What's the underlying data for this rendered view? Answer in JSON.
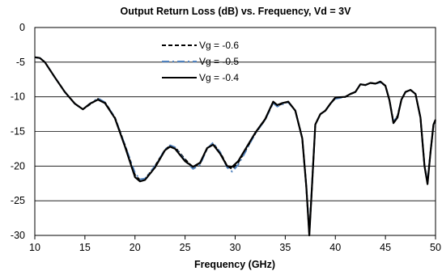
{
  "chart_data": {
    "type": "line",
    "title": "Output Return Loss (dB) vs. Frequency, Vd = 3V",
    "xlabel": "Frequency (GHz)",
    "ylabel": "",
    "xlim": [
      10,
      50
    ],
    "ylim": [
      -30,
      0
    ],
    "x_ticks": [
      10,
      15,
      20,
      25,
      30,
      35,
      40,
      45,
      50
    ],
    "y_ticks": [
      0,
      -5,
      -10,
      -15,
      -20,
      -25,
      -30
    ],
    "grid": "horizontal",
    "legend_position": "top-center",
    "series": [
      {
        "name": "Vg = -0.6",
        "color": "#000000",
        "style": "dashed",
        "points": [
          [
            10,
            -4.3
          ],
          [
            10.5,
            -4.4
          ],
          [
            11,
            -5.0
          ],
          [
            12,
            -7.2
          ],
          [
            13,
            -9.3
          ],
          [
            14,
            -11.0
          ],
          [
            14.8,
            -11.8
          ],
          [
            15.5,
            -11.1
          ],
          [
            16.3,
            -10.3
          ],
          [
            17,
            -10.8
          ],
          [
            18,
            -13.0
          ],
          [
            19,
            -17.0
          ],
          [
            20,
            -21.3
          ],
          [
            20.5,
            -22.0
          ],
          [
            21,
            -21.9
          ],
          [
            22,
            -20.0
          ],
          [
            23,
            -17.6
          ],
          [
            23.5,
            -17.1
          ],
          [
            24,
            -17.3
          ],
          [
            25,
            -19.0
          ],
          [
            25.8,
            -20.2
          ],
          [
            26.5,
            -19.6
          ],
          [
            27.2,
            -17.5
          ],
          [
            27.8,
            -16.8
          ],
          [
            28.5,
            -18.0
          ],
          [
            29.2,
            -20.0
          ],
          [
            29.7,
            -20.4
          ],
          [
            30.3,
            -19.5
          ],
          [
            31,
            -17.8
          ],
          [
            32,
            -15.3
          ],
          [
            33,
            -13.3
          ],
          [
            33.8,
            -10.8
          ],
          [
            34.2,
            -11.3
          ],
          [
            34.7,
            -11.0
          ],
          [
            35.3,
            -10.7
          ],
          [
            36,
            -12.0
          ],
          [
            36.7,
            -16.0
          ],
          [
            37.1,
            -23.0
          ],
          [
            37.4,
            -29.8
          ],
          [
            37.7,
            -22.0
          ],
          [
            38,
            -14.0
          ],
          [
            38.5,
            -12.5
          ],
          [
            39,
            -12.0
          ],
          [
            39.5,
            -11.0
          ],
          [
            40,
            -10.2
          ],
          [
            41,
            -10.0
          ],
          [
            41.5,
            -9.6
          ],
          [
            42,
            -9.3
          ],
          [
            42.5,
            -8.2
          ],
          [
            43,
            -8.3
          ],
          [
            43.5,
            -8.0
          ],
          [
            44,
            -8.1
          ],
          [
            44.5,
            -7.9
          ],
          [
            45,
            -8.4
          ],
          [
            45.4,
            -10.5
          ],
          [
            45.8,
            -13.6
          ],
          [
            46.2,
            -12.8
          ],
          [
            46.6,
            -10.4
          ],
          [
            47,
            -9.3
          ],
          [
            47.5,
            -9.0
          ],
          [
            48,
            -9.6
          ],
          [
            48.5,
            -13.0
          ],
          [
            48.9,
            -20.0
          ],
          [
            49.2,
            -22.3
          ],
          [
            49.5,
            -18.0
          ],
          [
            49.8,
            -14.0
          ],
          [
            50,
            -13.5
          ]
        ]
      },
      {
        "name": "Vg = -0.5",
        "color": "#4f81bd",
        "style": "dashdot",
        "points": [
          [
            10,
            -4.3
          ],
          [
            10.5,
            -4.4
          ],
          [
            11,
            -5.0
          ],
          [
            12,
            -7.2
          ],
          [
            13,
            -9.3
          ],
          [
            14,
            -11.0
          ],
          [
            14.8,
            -11.8
          ],
          [
            15.5,
            -11.0
          ],
          [
            16.3,
            -10.2
          ],
          [
            17,
            -10.8
          ],
          [
            18,
            -13.0
          ],
          [
            19,
            -17.0
          ],
          [
            20,
            -21.0
          ],
          [
            20.5,
            -21.9
          ],
          [
            21,
            -21.8
          ],
          [
            22,
            -20.0
          ],
          [
            23,
            -17.6
          ],
          [
            23.5,
            -17.0
          ],
          [
            24,
            -17.3
          ],
          [
            25,
            -19.2
          ],
          [
            25.8,
            -20.4
          ],
          [
            26.5,
            -19.8
          ],
          [
            27.2,
            -17.5
          ],
          [
            27.8,
            -16.6
          ],
          [
            28.5,
            -18.0
          ],
          [
            29.2,
            -20.2
          ],
          [
            29.7,
            -20.8
          ],
          [
            30.3,
            -19.8
          ],
          [
            31,
            -18.0
          ],
          [
            32,
            -15.3
          ],
          [
            33,
            -13.3
          ],
          [
            33.8,
            -10.9
          ],
          [
            34.2,
            -11.4
          ],
          [
            34.7,
            -11.1
          ],
          [
            35.3,
            -10.8
          ],
          [
            36,
            -12.0
          ],
          [
            36.7,
            -16.0
          ],
          [
            37.1,
            -23.0
          ],
          [
            37.4,
            -29.6
          ],
          [
            37.7,
            -22.0
          ],
          [
            38,
            -14.0
          ],
          [
            38.5,
            -12.5
          ],
          [
            39,
            -12.0
          ],
          [
            39.5,
            -11.0
          ],
          [
            40,
            -10.3
          ],
          [
            41,
            -10.0
          ],
          [
            41.5,
            -9.6
          ],
          [
            42,
            -9.3
          ],
          [
            42.5,
            -8.2
          ],
          [
            43,
            -8.3
          ],
          [
            43.5,
            -8.0
          ],
          [
            44,
            -8.1
          ],
          [
            44.5,
            -7.9
          ],
          [
            45,
            -8.4
          ],
          [
            45.4,
            -10.5
          ],
          [
            45.8,
            -13.6
          ],
          [
            46.2,
            -12.8
          ],
          [
            46.6,
            -10.4
          ],
          [
            47,
            -9.3
          ],
          [
            47.5,
            -9.0
          ],
          [
            48,
            -9.6
          ],
          [
            48.5,
            -13.0
          ],
          [
            48.9,
            -20.0
          ],
          [
            49.2,
            -22.3
          ],
          [
            49.5,
            -18.0
          ],
          [
            49.8,
            -14.0
          ],
          [
            50,
            -13.5
          ]
        ]
      },
      {
        "name": "Vg = -0.4",
        "color": "#000000",
        "style": "solid",
        "points": [
          [
            10,
            -4.3
          ],
          [
            10.5,
            -4.4
          ],
          [
            11,
            -5.0
          ],
          [
            12,
            -7.2
          ],
          [
            13,
            -9.3
          ],
          [
            14,
            -11.0
          ],
          [
            14.8,
            -11.8
          ],
          [
            15.5,
            -11.0
          ],
          [
            16.3,
            -10.4
          ],
          [
            17,
            -10.9
          ],
          [
            18,
            -13.1
          ],
          [
            19,
            -17.2
          ],
          [
            20,
            -21.6
          ],
          [
            20.5,
            -22.2
          ],
          [
            21,
            -22.0
          ],
          [
            22,
            -20.2
          ],
          [
            23,
            -17.7
          ],
          [
            23.5,
            -17.2
          ],
          [
            24,
            -17.5
          ],
          [
            25,
            -19.3
          ],
          [
            25.8,
            -20.1
          ],
          [
            26.5,
            -19.5
          ],
          [
            27.2,
            -17.4
          ],
          [
            27.8,
            -16.9
          ],
          [
            28.5,
            -18.2
          ],
          [
            29.2,
            -20.0
          ],
          [
            29.7,
            -20.1
          ],
          [
            30.3,
            -19.3
          ],
          [
            31,
            -17.6
          ],
          [
            32,
            -15.2
          ],
          [
            33,
            -13.2
          ],
          [
            33.8,
            -10.7
          ],
          [
            34.2,
            -11.2
          ],
          [
            34.7,
            -10.9
          ],
          [
            35.3,
            -10.7
          ],
          [
            36,
            -12.0
          ],
          [
            36.7,
            -16.0
          ],
          [
            37.1,
            -23.0
          ],
          [
            37.4,
            -30.0
          ],
          [
            37.7,
            -22.0
          ],
          [
            38,
            -14.0
          ],
          [
            38.5,
            -12.5
          ],
          [
            39,
            -12.0
          ],
          [
            39.5,
            -11.0
          ],
          [
            40,
            -10.1
          ],
          [
            41,
            -10.0
          ],
          [
            41.5,
            -9.6
          ],
          [
            42,
            -9.3
          ],
          [
            42.5,
            -8.2
          ],
          [
            43,
            -8.3
          ],
          [
            43.5,
            -8.0
          ],
          [
            44,
            -8.1
          ],
          [
            44.5,
            -7.8
          ],
          [
            45,
            -8.4
          ],
          [
            45.4,
            -10.5
          ],
          [
            45.8,
            -13.8
          ],
          [
            46.2,
            -13.0
          ],
          [
            46.6,
            -10.4
          ],
          [
            47,
            -9.3
          ],
          [
            47.5,
            -9.0
          ],
          [
            48,
            -9.6
          ],
          [
            48.5,
            -13.0
          ],
          [
            48.9,
            -20.0
          ],
          [
            49.2,
            -22.6
          ],
          [
            49.5,
            -18.0
          ],
          [
            49.8,
            -14.0
          ],
          [
            50,
            -13.3
          ]
        ]
      }
    ]
  }
}
